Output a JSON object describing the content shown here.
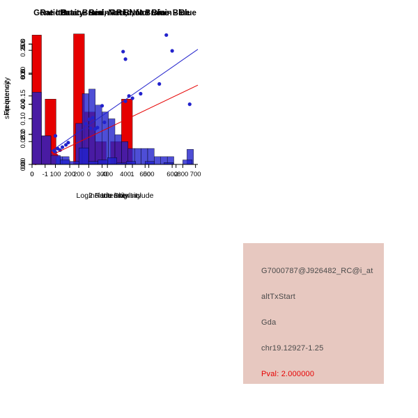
{
  "info_box": {
    "background": "#e7c8c0",
    "lines": [
      {
        "text": "G7000787@J926482_RC@i_at",
        "color": "#4a4a4a"
      },
      {
        "text": "altTxStart",
        "color": "#4a4a4a"
      },
      {
        "text": "Gda",
        "color": "#4a4a4a"
      },
      {
        "text": "chr19.12927-1.25",
        "color": "#4a4a4a"
      },
      {
        "text": "Pval: 2.000000",
        "color": "#e60000"
      }
    ]
  },
  "chart_data": [
    {
      "id": "chart-ratio-hist",
      "type": "bar",
      "subtype": "overlaid-histogram",
      "title": "RatioData: Brain - Red, Not Brain - Blue",
      "xlabel": "Log2 Ratio Skip/Include",
      "ylabel": "Frequency",
      "xlim": [
        -1.3,
        2.5
      ],
      "ylim": [
        0,
        0.29
      ],
      "xticks": [
        -1,
        0,
        1,
        2
      ],
      "xtick_labels": [
        "-1",
        "0",
        "1",
        "2"
      ],
      "yticks": [
        0,
        0.05,
        0.1,
        0.15,
        0.2,
        0.25
      ],
      "ytick_labels": [
        "0.00",
        "0.05",
        "0.10",
        "0.15",
        "0.20",
        "0.25"
      ],
      "grid": false,
      "series": [
        {
          "name": "Brain",
          "color": "#e60000",
          "opacity": 1,
          "bins": [
            [
              -1.0,
              -0.75,
              0.143
            ],
            [
              -0.35,
              -0.1,
              0.286
            ],
            [
              -0.1,
              0.15,
              0.115
            ],
            [
              0.15,
              0.4,
              0.05
            ],
            [
              0.5,
              0.75,
              0.05
            ],
            [
              0.75,
              1.0,
              0.143
            ]
          ]
        },
        {
          "name": "Not Brain",
          "color": "#2222cc",
          "opacity": 0.8,
          "bins": [
            [
              -1.2,
              -1.05,
              0.05
            ],
            [
              -0.75,
              -0.6,
              0.017
            ],
            [
              -0.6,
              -0.45,
              0.017
            ],
            [
              -0.3,
              -0.15,
              0.09
            ],
            [
              -0.15,
              0,
              0.155
            ],
            [
              0,
              0.15,
              0.165
            ],
            [
              0.15,
              0.3,
              0.13
            ],
            [
              0.3,
              0.45,
              0.115
            ],
            [
              0.45,
              0.6,
              0.1
            ],
            [
              0.6,
              0.75,
              0.065
            ],
            [
              0.75,
              0.9,
              0.05
            ],
            [
              0.9,
              1.05,
              0.035
            ],
            [
              1.05,
              1.2,
              0.035
            ],
            [
              1.2,
              1.35,
              0.035
            ],
            [
              1.35,
              1.5,
              0.035
            ],
            [
              1.5,
              1.65,
              0.017
            ],
            [
              1.65,
              1.8,
              0.017
            ],
            [
              1.8,
              1.95,
              0.017
            ],
            [
              2.25,
              2.4,
              0.033
            ]
          ]
        }
      ]
    },
    {
      "id": "chart-intensity-scatter",
      "type": "scatter",
      "title": "Brain - Red, Not Brain - Blue",
      "xlabel": "include intensity",
      "ylabel": "skip intensity",
      "xlim": [
        0,
        710
      ],
      "ylim": [
        0,
        880
      ],
      "xticks": [
        0,
        100,
        200,
        300,
        400,
        500,
        600,
        700
      ],
      "xtick_labels": [
        "0",
        "100",
        "200",
        "300",
        "400",
        "500",
        "600",
        "700"
      ],
      "yticks": [
        0,
        200,
        400,
        600,
        800
      ],
      "ytick_labels": [
        "0",
        "200",
        "400",
        "600",
        "800"
      ],
      "grid": false,
      "series": [
        {
          "name": "Not Brain",
          "color": "#2222cc",
          "line": [
            0,
            0,
            710,
            765
          ],
          "points": [
            [
              15,
              10
            ],
            [
              25,
              20
            ],
            [
              30,
              35
            ],
            [
              40,
              15
            ],
            [
              45,
              40
            ],
            [
              55,
              30
            ],
            [
              60,
              55
            ],
            [
              70,
              45
            ],
            [
              75,
              70
            ],
            [
              85,
              60
            ],
            [
              95,
              90
            ],
            [
              100,
              80
            ],
            [
              100,
              190
            ],
            [
              110,
              105
            ],
            [
              120,
              95
            ],
            [
              130,
              115
            ],
            [
              145,
              130
            ],
            [
              155,
              145
            ],
            [
              230,
              270
            ],
            [
              245,
              300
            ],
            [
              250,
              240
            ],
            [
              260,
              310
            ],
            [
              270,
              235
            ],
            [
              280,
              245
            ],
            [
              300,
              390
            ],
            [
              310,
              280
            ],
            [
              390,
              750
            ],
            [
              400,
              700
            ],
            [
              400,
              420
            ],
            [
              415,
              455
            ],
            [
              430,
              440
            ],
            [
              465,
              470
            ],
            [
              545,
              535
            ],
            [
              575,
              860
            ],
            [
              600,
              755
            ],
            [
              675,
              400
            ]
          ]
        },
        {
          "name": "Brain",
          "color": "#e60000",
          "line": [
            0,
            0,
            710,
            527
          ],
          "points": [
            [
              15,
              8
            ],
            [
              25,
              14
            ],
            [
              35,
              20
            ],
            [
              45,
              25
            ],
            [
              55,
              30
            ],
            [
              65,
              35
            ],
            [
              75,
              40
            ],
            [
              85,
              45
            ],
            [
              95,
              52
            ],
            [
              105,
              58
            ]
          ]
        }
      ]
    },
    {
      "id": "chart-gene-hist",
      "type": "bar",
      "subtype": "overlaid-histogram",
      "title": "Gene Itensity: Brain - Red, Not Brain - Blue",
      "xlabel": "Intensity",
      "ylabel": "Frequency",
      "xlim": [
        0,
        880
      ],
      "ylim": [
        0,
        0.88
      ],
      "xticks": [
        0,
        200,
        400,
        600,
        800
      ],
      "xtick_labels": [
        "0",
        "200",
        "400",
        "600",
        "800"
      ],
      "yticks": [
        0,
        0.2,
        0.4,
        0.6,
        0.8
      ],
      "ytick_labels": [
        "0.0",
        "0.2",
        "0.4",
        "0.6",
        "0.8"
      ],
      "grid": false,
      "series": [
        {
          "name": "Brain",
          "color": "#e60000",
          "opacity": 1,
          "bins": [
            [
              0,
              50,
              0.86
            ],
            [
              50,
              100,
              0.19
            ]
          ]
        },
        {
          "name": "Not Brain",
          "color": "#2222cc",
          "opacity": 0.8,
          "bins": [
            [
              0,
              50,
              0.48
            ],
            [
              50,
              100,
              0.19
            ],
            [
              100,
              150,
              0.06
            ],
            [
              150,
              200,
              0.03
            ],
            [
              200,
              250,
              0.02
            ],
            [
              250,
              300,
              0.11
            ],
            [
              300,
              350,
              0.02
            ],
            [
              350,
              400,
              0.03
            ],
            [
              400,
              450,
              0.045
            ],
            [
              450,
              500,
              0.01
            ],
            [
              500,
              550,
              0.02
            ],
            [
              600,
              650,
              0.02
            ],
            [
              700,
              750,
              0.012
            ],
            [
              800,
              850,
              0.03
            ]
          ]
        }
      ]
    }
  ]
}
